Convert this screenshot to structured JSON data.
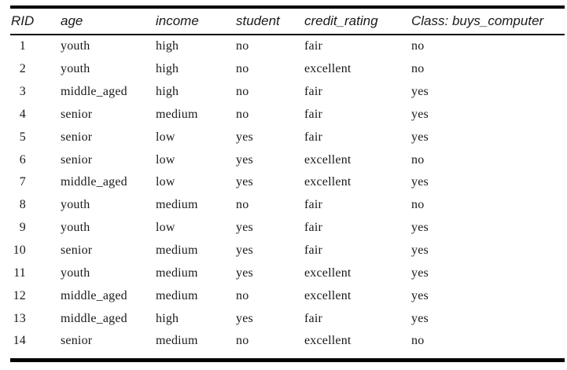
{
  "colors": {
    "background": "#ffffff",
    "text": "#1a1a1a",
    "rule": "#000000"
  },
  "table": {
    "columns": [
      {
        "key": "rid",
        "label": "RID"
      },
      {
        "key": "age",
        "label": "age"
      },
      {
        "key": "income",
        "label": "income"
      },
      {
        "key": "student",
        "label": "student"
      },
      {
        "key": "credit_rating",
        "label": "credit_rating"
      },
      {
        "key": "class",
        "label": "Class: buys_computer"
      }
    ],
    "rows": [
      [
        "1",
        "youth",
        "high",
        "no",
        "fair",
        "no"
      ],
      [
        "2",
        "youth",
        "high",
        "no",
        "excellent",
        "no"
      ],
      [
        "3",
        "middle_aged",
        "high",
        "no",
        "fair",
        "yes"
      ],
      [
        "4",
        "senior",
        "medium",
        "no",
        "fair",
        "yes"
      ],
      [
        "5",
        "senior",
        "low",
        "yes",
        "fair",
        "yes"
      ],
      [
        "6",
        "senior",
        "low",
        "yes",
        "excellent",
        "no"
      ],
      [
        "7",
        "middle_aged",
        "low",
        "yes",
        "excellent",
        "yes"
      ],
      [
        "8",
        "youth",
        "medium",
        "no",
        "fair",
        "no"
      ],
      [
        "9",
        "youth",
        "low",
        "yes",
        "fair",
        "yes"
      ],
      [
        "10",
        "senior",
        "medium",
        "yes",
        "fair",
        "yes"
      ],
      [
        "11",
        "youth",
        "medium",
        "yes",
        "excellent",
        "yes"
      ],
      [
        "12",
        "middle_aged",
        "medium",
        "no",
        "excellent",
        "yes"
      ],
      [
        "13",
        "middle_aged",
        "high",
        "yes",
        "fair",
        "yes"
      ],
      [
        "14",
        "senior",
        "medium",
        "no",
        "excellent",
        "no"
      ]
    ]
  }
}
